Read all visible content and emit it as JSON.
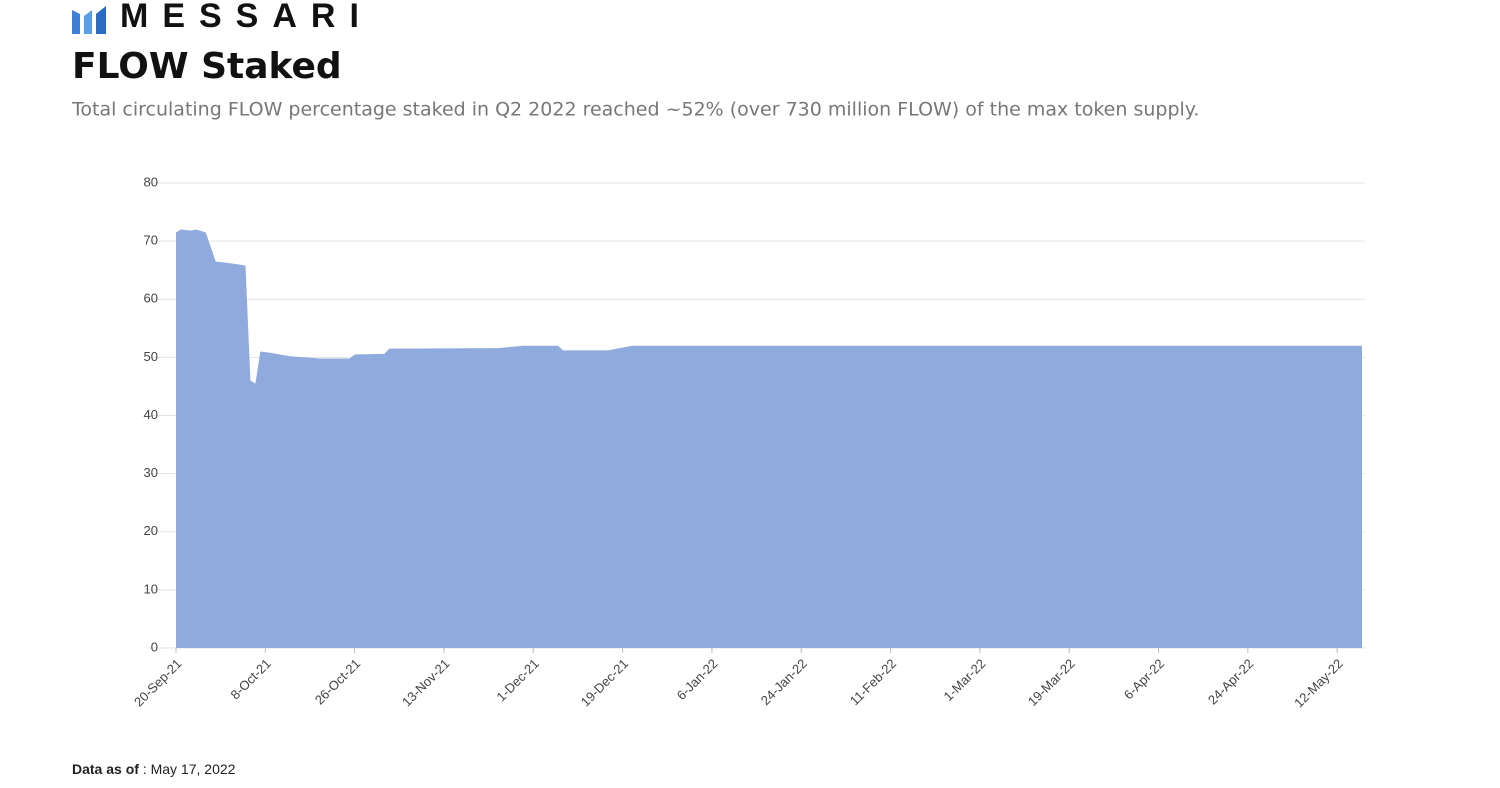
{
  "brand": "MESSARI",
  "footer": {
    "label": "Data as of",
    "value": ": May 17, 2022"
  },
  "chart_data": {
    "type": "area",
    "title": "FLOW Staked",
    "subtitle": "Total circulating FLOW percentage staked in Q2 2022 reached ~52% (over 730 million FLOW) of the max token supply.",
    "x": [
      "2021-09-20",
      "2021-09-21",
      "2021-09-23",
      "2021-09-24",
      "2021-09-26",
      "2021-09-28",
      "2021-10-01",
      "2021-10-04",
      "2021-10-05",
      "2021-10-06",
      "2021-10-07",
      "2021-10-09",
      "2021-10-13",
      "2021-10-19",
      "2021-10-25",
      "2021-10-26",
      "2021-11-01",
      "2021-11-02",
      "2021-11-24",
      "2021-11-29",
      "2021-12-06",
      "2021-12-07",
      "2021-12-16",
      "2021-12-21",
      "2022-05-17"
    ],
    "values": [
      71.5,
      72,
      71.8,
      72,
      71.5,
      66.5,
      66.2,
      65.8,
      46,
      45.5,
      51,
      50.8,
      50.2,
      49.8,
      49.8,
      50.5,
      50.6,
      51.5,
      51.6,
      52,
      52,
      51.2,
      51.2,
      52,
      52
    ],
    "color": "#8faadc",
    "xlim": [
      "2021-09-20",
      "2022-05-17"
    ],
    "xticks": [
      {
        "value": "2021-09-20",
        "label": "20-Sep-21"
      },
      {
        "value": "2021-10-08",
        "label": "8-Oct-21"
      },
      {
        "value": "2021-10-26",
        "label": "26-Oct-21"
      },
      {
        "value": "2021-11-13",
        "label": "13-Nov-21"
      },
      {
        "value": "2021-12-01",
        "label": "1-Dec-21"
      },
      {
        "value": "2021-12-19",
        "label": "19-Dec-21"
      },
      {
        "value": "2022-01-06",
        "label": "6-Jan-22"
      },
      {
        "value": "2022-01-24",
        "label": "24-Jan-22"
      },
      {
        "value": "2022-02-11",
        "label": "11-Feb-22"
      },
      {
        "value": "2022-03-01",
        "label": "1-Mar-22"
      },
      {
        "value": "2022-03-19",
        "label": "19-Mar-22"
      },
      {
        "value": "2022-04-06",
        "label": "6-Apr-22"
      },
      {
        "value": "2022-04-24",
        "label": "24-Apr-22"
      },
      {
        "value": "2022-05-12",
        "label": "12-May-22"
      }
    ],
    "ylim": [
      0,
      80
    ],
    "yticks": [
      0,
      10,
      20,
      30,
      40,
      50,
      60,
      70,
      80
    ],
    "grid": true
  }
}
